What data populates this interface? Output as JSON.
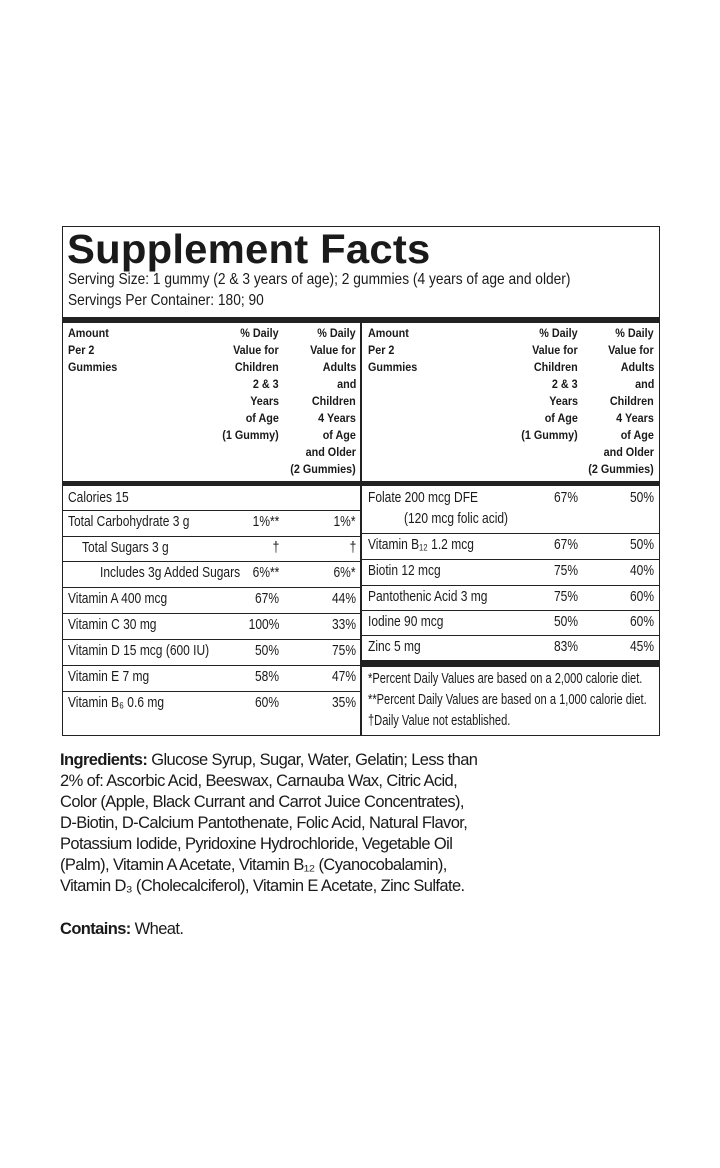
{
  "title": "Supplement Facts",
  "serving_size": "Serving Size:  1 gummy (2 & 3 years of age); 2 gummies (4 years of age and older)",
  "servings_per_container": "Servings Per Container: 180; 90",
  "table": {
    "left": {
      "header": [
        [
          "Amount",
          "Per 2",
          "Gummies"
        ],
        [
          "% Daily",
          "Value for",
          "Children",
          "2 & 3",
          "Years",
          "of Age",
          "(1 Gummy)"
        ],
        [
          "% Daily",
          "Value for",
          "Adults",
          "and",
          "Children",
          "4 Years",
          "of Age",
          "and Older",
          "(2 Gummies)"
        ]
      ],
      "rows": [
        {
          "name": "Calories 15"
        },
        {
          "name": "Total Carbohydrate 3 g",
          "children": "1%**",
          "adults": "1%*"
        },
        {
          "name": "Total Sugars 3 g",
          "children": "†",
          "adults": "†"
        },
        {
          "name": "Includes 3g Added Sugars",
          "children": "6%**",
          "adults": "6%*"
        },
        {
          "name": "Vitamin A 400 mcg",
          "children": "67%",
          "adults": "44%"
        },
        {
          "name": "Vitamin C 30 mg",
          "children": "100%",
          "adults": "33%"
        },
        {
          "name": "Vitamin D 15 mcg (600 IU)",
          "children": "50%",
          "adults": "75%"
        },
        {
          "name": "Vitamin E 7 mg",
          "children": "58%",
          "adults": "47%"
        },
        {
          "name": "Vitamin B₆ 0.6 mg",
          "children": "60%",
          "adults": "35%"
        }
      ]
    },
    "right": {
      "header": [
        [
          "Amount",
          "Per 2",
          "Gummies"
        ],
        [
          "% Daily",
          "Value for",
          "Children",
          "2 & 3",
          "Years",
          "of Age",
          "(1 Gummy)"
        ],
        [
          "% Daily",
          "Value for",
          "Adults",
          "and",
          "Children",
          "4 Years",
          "of Age",
          "and Older",
          "(2 Gummies)"
        ]
      ],
      "rows": [
        {
          "name": "Folate 200 mcg DFE",
          "note": "(120 mcg folic acid)",
          "children": "67%",
          "adults": "50%"
        },
        {
          "name": "Vitamin B₁₂ 1.2 mcg",
          "children": "67%",
          "adults": "50%"
        },
        {
          "name": "Biotin 12 mcg",
          "children": "75%",
          "adults": "40%"
        },
        {
          "name": "Pantothenic Acid 3 mg",
          "children": "75%",
          "adults": "60%"
        },
        {
          "name": "Iodine 90 mcg",
          "children": "50%",
          "adults": "60%"
        },
        {
          "name": "Zinc 5 mg",
          "children": "83%",
          "adults": "45%"
        }
      ],
      "footnotes": [
        "*Percent Daily Values are based on a 2,000 calorie diet.",
        "**Percent Daily Values are based on a 1,000 calorie diet.",
        "†Daily Value not established."
      ]
    }
  },
  "ingredients": {
    "label": "Ingredients:",
    "text": "Glucose Syrup, Sugar, Water, Gelatin; Less than 2% of: Ascorbic Acid, Beeswax, Carnauba Wax, Citric Acid, Color (Apple, Black Currant and Carrot Juice Concentrates), D-Biotin, D-Calcium Pantothenate, Folic Acid, Natural Flavor, Potassium Iodide, Pyridoxine Hydrochloride, Vegetable Oil (Palm), Vitamin A Acetate, Vitamin B₁₂ (Cyanocobalamin), Vitamin D₃ (Cholecalciferol), Vitamin E Acetate, Zinc Sulfate."
  },
  "contains": {
    "label": "Contains:",
    "text": "Wheat."
  }
}
